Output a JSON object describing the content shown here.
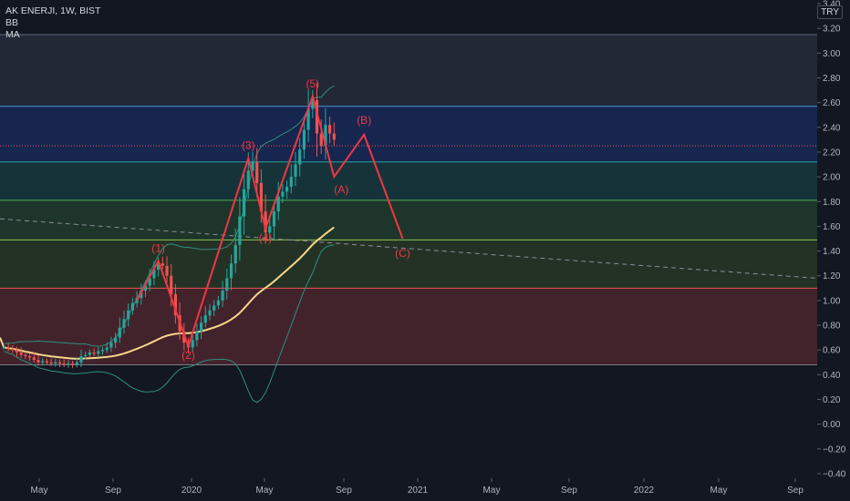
{
  "legend": {
    "symbol_line": "AK ENERJI, 1W, BIST",
    "indicator_1": "BB",
    "indicator_2": "MA"
  },
  "currency": "TRY",
  "colors": {
    "background": "#131722",
    "up_candle": "#26a69a",
    "down_candle": "#ef5350",
    "elliott_wave": "#f23645",
    "moving_average": "#f5d78a",
    "bollinger": "#2f8f7f",
    "fib_line": "#4a8fd1"
  },
  "chart_data": {
    "type": "candlestick",
    "title": "AK ENERJI, 1W, BIST",
    "xlabel": "",
    "ylabel": "",
    "ylim": [
      -0.4,
      3.4
    ],
    "grid": false,
    "y_ticks": [
      "3.40",
      "3.20",
      "3.00",
      "2.80",
      "2.60",
      "2.40",
      "2.20",
      "2.00",
      "1.80",
      "1.60",
      "1.40",
      "1.20",
      "1.00",
      "0.80",
      "0.60",
      "0.40",
      "0.20",
      "0.00",
      "−0.20",
      "−0.40"
    ],
    "x_ticks": [
      {
        "label": "May",
        "t": 0
      },
      {
        "label": "Sep",
        "t": 17
      },
      {
        "label": "2020",
        "t": 35
      },
      {
        "label": "May",
        "t": 52
      },
      {
        "label": "Sep",
        "t": 70
      },
      {
        "label": "2021",
        "t": 88
      },
      {
        "label": "May",
        "t": 105
      },
      {
        "label": "Sep",
        "t": 123
      },
      {
        "label": "2022",
        "t": 140
      },
      {
        "label": "May",
        "t": 157
      },
      {
        "label": "Sep",
        "t": 175
      }
    ],
    "weekly_close": [
      0.62,
      0.61,
      0.6,
      0.58,
      0.56,
      0.55,
      0.54,
      0.52,
      0.5,
      0.51,
      0.5,
      0.49,
      0.5,
      0.49,
      0.48,
      0.49,
      0.48,
      0.5,
      0.55,
      0.56,
      0.58,
      0.57,
      0.59,
      0.6,
      0.62,
      0.66,
      0.7,
      0.78,
      0.85,
      0.92,
      0.98,
      1.02,
      1.08,
      1.12,
      1.18,
      1.25,
      1.3,
      1.28,
      1.2,
      1.05,
      0.88,
      0.75,
      0.66,
      0.62,
      0.68,
      0.75,
      0.82,
      0.88,
      0.92,
      0.96,
      1.0,
      1.08,
      1.18,
      1.3,
      1.45,
      1.68,
      1.9,
      2.05,
      2.12,
      1.95,
      1.72,
      1.55,
      1.6,
      1.72,
      1.84,
      1.88,
      1.92,
      2.0,
      2.1,
      2.22,
      2.38,
      2.55,
      2.62,
      2.35,
      2.25,
      2.42,
      2.35,
      2.3
    ],
    "fib_levels": [
      {
        "value": 3.15,
        "color": "#5a6a80"
      },
      {
        "value": 2.57,
        "color": "#4a8fd1"
      },
      {
        "value": 2.12,
        "color": "#26a69a"
      },
      {
        "value": 1.81,
        "color": "#4caf50"
      },
      {
        "value": 1.49,
        "color": "#8bc34a"
      },
      {
        "value": 1.1,
        "color": "#ef5350"
      },
      {
        "value": 0.48,
        "color": "#787b86"
      }
    ],
    "fib_bands": [
      {
        "from": 3.15,
        "to": 2.57,
        "color": "#5a6a80",
        "opacity": 0.22
      },
      {
        "from": 2.57,
        "to": 2.12,
        "color": "#2962ff",
        "opacity": 0.2
      },
      {
        "from": 2.12,
        "to": 1.81,
        "color": "#26a69a",
        "opacity": 0.2
      },
      {
        "from": 1.81,
        "to": 1.49,
        "color": "#4caf50",
        "opacity": 0.2
      },
      {
        "from": 1.49,
        "to": 1.1,
        "color": "#689f38",
        "opacity": 0.2
      },
      {
        "from": 1.1,
        "to": 0.48,
        "color": "#ef5350",
        "opacity": 0.22
      }
    ],
    "current_price": 2.25,
    "trend_line": {
      "t0": 0,
      "v0": 1.62,
      "t1": 190,
      "v1": 1.13
    },
    "elliott_wave_points": [
      {
        "t": 36,
        "v": 1.32,
        "label": "(1)"
      },
      {
        "t": 43,
        "v": 0.63,
        "label": "(2)"
      },
      {
        "t": 57,
        "v": 2.15,
        "label": "(3)"
      },
      {
        "t": 61,
        "v": 1.58,
        "label": "(4)"
      },
      {
        "t": 72,
        "v": 2.65,
        "label": "(5)"
      },
      {
        "t": 77,
        "v": 2.0,
        "label": "(A)"
      },
      {
        "t": 84,
        "v": 2.34,
        "label": "(B)"
      },
      {
        "t": 93,
        "v": 1.5,
        "label": "(C)"
      }
    ],
    "wave_start": {
      "t": 31,
      "v": 1.0
    }
  }
}
